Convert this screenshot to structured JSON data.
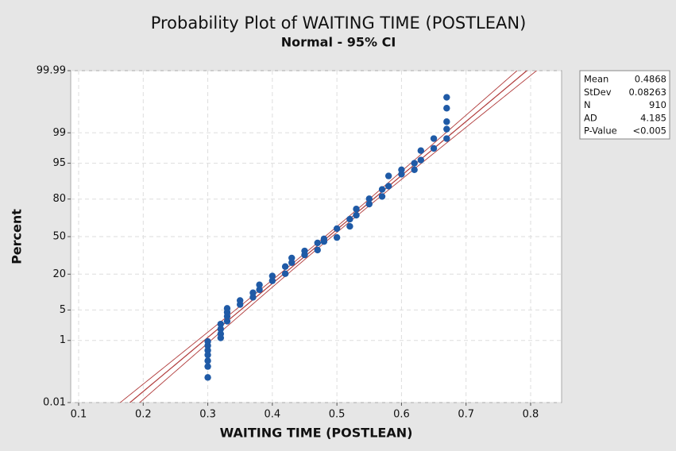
{
  "chart_data": {
    "type": "probability",
    "title": "Probability Plot of WAITING TIME (POSTLEAN)",
    "subtitle": "Normal - 95% CI",
    "x_label": "WAITING TIME (POSTLEAN)",
    "y_label": "Percent",
    "scale": "normal",
    "grid": true,
    "xlim": [
      0.0877,
      0.848
    ],
    "xticks": [
      0.1,
      0.2,
      0.3,
      0.4,
      0.5,
      0.6,
      0.7,
      0.8
    ],
    "ylim": [
      0.01,
      99.99
    ],
    "yticks": [
      0.01,
      1,
      5,
      20,
      50,
      80,
      95,
      99,
      99.99
    ],
    "point_color": "#1f5aa6",
    "line_color": "#b03a3a",
    "confidence": 0.95,
    "x": [
      0.3,
      0.3,
      0.3,
      0.3,
      0.3,
      0.3,
      0.3,
      0.32,
      0.32,
      0.32,
      0.32,
      0.33,
      0.33,
      0.33,
      0.33,
      0.35,
      0.35,
      0.37,
      0.37,
      0.38,
      0.38,
      0.4,
      0.4,
      0.42,
      0.42,
      0.43,
      0.43,
      0.45,
      0.45,
      0.47,
      0.47,
      0.48,
      0.48,
      0.5,
      0.5,
      0.52,
      0.52,
      0.53,
      0.53,
      0.55,
      0.55,
      0.57,
      0.57,
      0.58,
      0.58,
      0.6,
      0.6,
      0.62,
      0.62,
      0.63,
      0.63,
      0.65,
      0.65,
      0.67,
      0.67,
      0.67,
      0.67,
      0.67
    ],
    "y": [
      0.08,
      0.18,
      0.27,
      0.4,
      0.54,
      0.73,
      0.94,
      1.16,
      1.46,
      1.92,
      2.5,
      2.9,
      3.7,
      4.5,
      5.4,
      6.4,
      7.6,
      8.7,
      10.4,
      11.7,
      14,
      16.1,
      18.9,
      20.3,
      25.1,
      28,
      31.6,
      34.1,
      37.4,
      38.2,
      44.4,
      45.6,
      48,
      49.2,
      57.1,
      59.1,
      65.2,
      68.4,
      73.2,
      76.7,
      80.2,
      81.6,
      85.5,
      87.1,
      91.3,
      91.9,
      93.3,
      93.3,
      95,
      95.7,
      97.3,
      97.6,
      98.6,
      98.6,
      99.2,
      99.5,
      99.8,
      99.91
    ],
    "stats": [
      {
        "label": "Mean",
        "value": 0.4868
      },
      {
        "label": "StDev",
        "value": 0.08263
      },
      {
        "label": "N",
        "value": 910
      },
      {
        "label": "AD",
        "value": 4.185
      },
      {
        "label": "P-Value",
        "value": "<0.005"
      }
    ]
  }
}
